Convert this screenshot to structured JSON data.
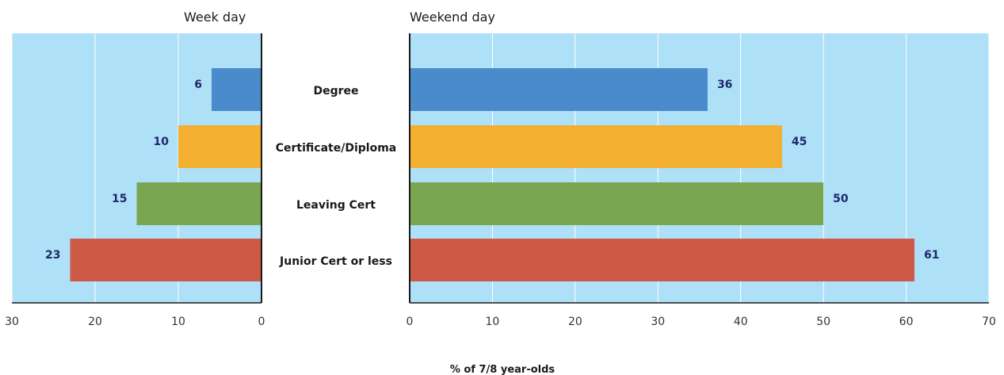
{
  "chart_data": {
    "type": "bar",
    "orientation": "horizontal",
    "categories": [
      "Degree",
      "Certificate/Diploma",
      "Leaving Cert",
      "Junior Cert or less"
    ],
    "colors": [
      "#4a8ccb",
      "#f3af2f",
      "#7aa652",
      "#cc5a47"
    ],
    "background_color": "#aee0f7",
    "grid": true,
    "xlabel": "% of 7/8 year-olds",
    "panels": [
      {
        "title": "Week day",
        "values": [
          6,
          10,
          15,
          23
        ],
        "xlim": [
          30,
          0
        ],
        "ticks": [
          "30",
          "20",
          "10",
          "0"
        ],
        "tick_values": [
          30,
          20,
          10,
          0
        ]
      },
      {
        "title": "Weekend day",
        "values": [
          36,
          45,
          50,
          61
        ],
        "xlim": [
          0,
          70
        ],
        "ticks": [
          "0",
          "10",
          "20",
          "30",
          "40",
          "50",
          "60",
          "70"
        ],
        "tick_values": [
          0,
          10,
          20,
          30,
          40,
          50,
          60,
          70
        ]
      }
    ]
  }
}
